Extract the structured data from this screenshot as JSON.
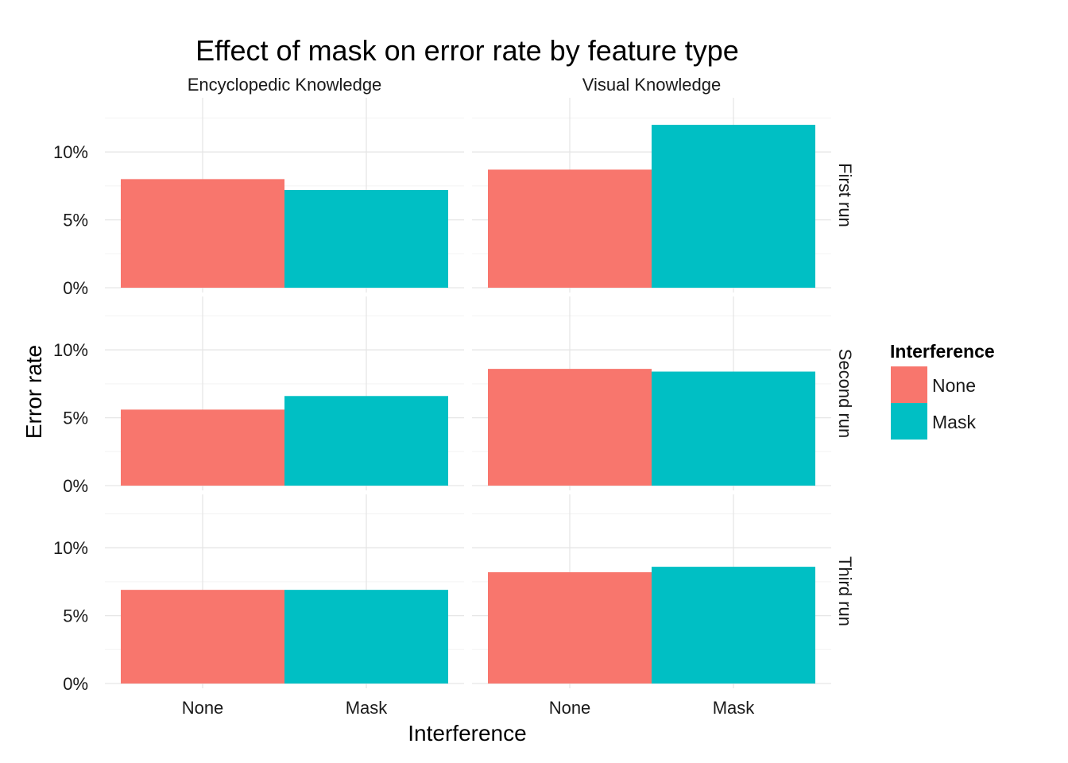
{
  "chart_data": {
    "type": "bar",
    "title": "Effect of mask on error rate by feature type",
    "xlabel": "Interference",
    "ylabel": "Error rate",
    "categories": [
      "None",
      "Mask"
    ],
    "columns": [
      "Encyclopedic Knowledge",
      "Visual Knowledge"
    ],
    "rows": [
      "First run",
      "Second run",
      "Third run"
    ],
    "yticks": [
      "0%",
      "5%",
      "10%"
    ],
    "ylim": [
      0,
      0.13
    ],
    "grid": true,
    "legend": {
      "title": "Interference",
      "position": "right",
      "entries": [
        {
          "label": "None",
          "color": "#F8766D"
        },
        {
          "label": "Mask",
          "color": "#00BFC4"
        }
      ]
    },
    "panels": [
      {
        "row": "First run",
        "column": "Encyclopedic Knowledge",
        "values": [
          0.08,
          0.072
        ]
      },
      {
        "row": "First run",
        "column": "Visual Knowledge",
        "values": [
          0.087,
          0.12
        ]
      },
      {
        "row": "Second run",
        "column": "Encyclopedic Knowledge",
        "values": [
          0.056,
          0.066
        ]
      },
      {
        "row": "Second run",
        "column": "Visual Knowledge",
        "values": [
          0.086,
          0.084
        ]
      },
      {
        "row": "Third run",
        "column": "Encyclopedic Knowledge",
        "values": [
          0.069,
          0.069
        ]
      },
      {
        "row": "Third run",
        "column": "Visual Knowledge",
        "values": [
          0.082,
          0.086
        ]
      }
    ]
  }
}
